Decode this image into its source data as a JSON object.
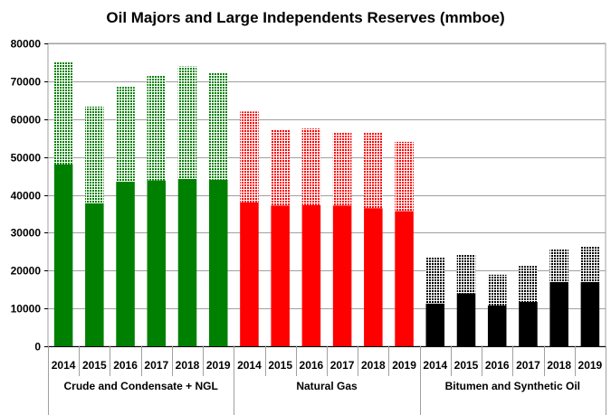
{
  "chart_data": {
    "type": "bar",
    "stacked": true,
    "title": "Oil Majors and Large Independents Reserves (mmboe)",
    "xlabel": "",
    "ylabel": "",
    "ylim": [
      0,
      80000
    ],
    "yticks": [
      "0",
      "10000",
      "20000",
      "30000",
      "40000",
      "50000",
      "60000",
      "70000",
      "80000"
    ],
    "grid": true,
    "legend": "none",
    "groups": [
      {
        "name": "Crude and Condensate + NGL",
        "color": "#008000",
        "categories": [
          "2014",
          "2015",
          "2016",
          "2017",
          "2018",
          "2019"
        ],
        "series": [
          {
            "values": [
              48000,
              37800,
              43500,
              43800,
              44200,
              44000
            ]
          },
          {
            "values": [
              27000,
              25500,
              25000,
              27800,
              29700,
              28200
            ]
          }
        ]
      },
      {
        "name": "Natural Gas",
        "color": "#ff0000",
        "categories": [
          "2014",
          "2015",
          "2016",
          "2017",
          "2018",
          "2019"
        ],
        "series": [
          {
            "values": [
              38000,
              37200,
              37300,
              37200,
              36500,
              35700
            ]
          },
          {
            "values": [
              24000,
              19900,
              20200,
              19300,
              20100,
              18300
            ]
          }
        ]
      },
      {
        "name": "Bitumen and Synthetic Oil",
        "color": "#000000",
        "categories": [
          "2014",
          "2015",
          "2016",
          "2017",
          "2018",
          "2019"
        ],
        "series": [
          {
            "values": [
              11300,
              14000,
              10800,
              11700,
              17000,
              17000
            ]
          },
          {
            "values": [
              12100,
              10100,
              8100,
              9500,
              8600,
              9500
            ]
          }
        ]
      }
    ]
  }
}
